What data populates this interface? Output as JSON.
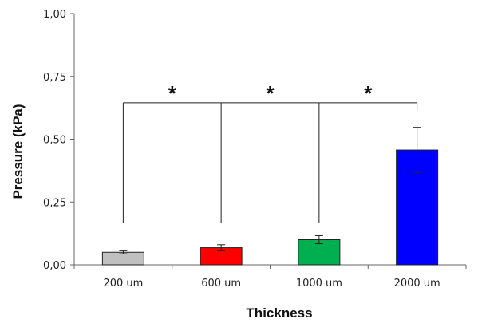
{
  "chart_data": {
    "type": "bar",
    "xlabel": "Thickness",
    "ylabel": "Pressure (kPa)",
    "ylim": [
      0,
      1.0
    ],
    "yticks": [
      0,
      0.25,
      0.5,
      0.75,
      1.0
    ],
    "ytick_labels": [
      "0,00",
      "0,25",
      "0,50",
      "0,75",
      "1,00"
    ],
    "categories": [
      "200 um",
      "600 um",
      "1000 um",
      "2000 um"
    ],
    "values": [
      0.05,
      0.068,
      0.1,
      0.457
    ],
    "errors": [
      0.006,
      0.012,
      0.016,
      0.09
    ],
    "colors": [
      "#c0c0c0",
      "#ff0000",
      "#00b050",
      "#0000ff"
    ],
    "significance": {
      "bracket_level": 0.645,
      "leg_bottoms": [
        0.165,
        0.165,
        0.165,
        0.615
      ],
      "symbols": [
        "*",
        "*",
        "*"
      ]
    },
    "grid": false,
    "legend": "none"
  }
}
